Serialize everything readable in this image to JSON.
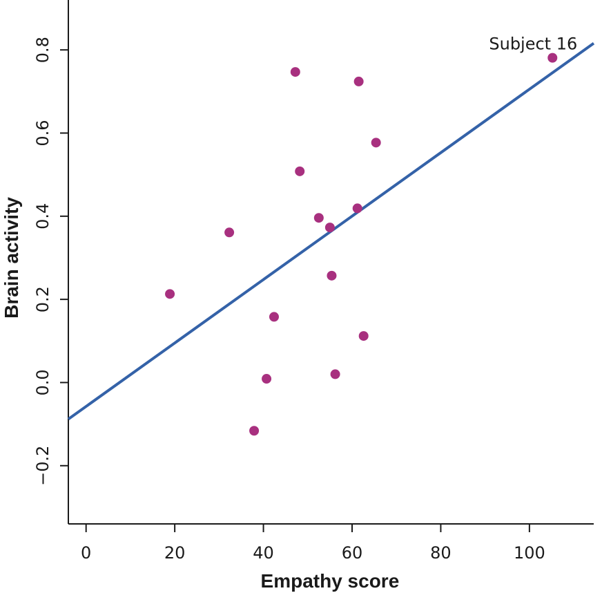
{
  "chart_data": {
    "type": "scatter",
    "title": "",
    "xlabel": "Empathy score",
    "ylabel": "Brain activity",
    "xlim": [
      -4,
      114.5
    ],
    "ylim": [
      -0.34,
      0.92
    ],
    "x_ticks": [
      0,
      20,
      40,
      60,
      80,
      100
    ],
    "x_tick_labels": [
      "0",
      "20",
      "40",
      "60",
      "80",
      "100"
    ],
    "y_ticks": [
      -0.2,
      0.0,
      0.2,
      0.4,
      0.6,
      0.8
    ],
    "y_tick_labels": [
      "−0.2",
      "0.0",
      "0.2",
      "0.4",
      "0.6",
      "0.8"
    ],
    "grid": false,
    "series": [
      {
        "type": "scatter",
        "color": "#a8307f",
        "points": [
          {
            "x": 18.9,
            "y": 0.213
          },
          {
            "x": 32.3,
            "y": 0.361
          },
          {
            "x": 37.9,
            "y": -0.116
          },
          {
            "x": 40.7,
            "y": 0.009
          },
          {
            "x": 42.4,
            "y": 0.158
          },
          {
            "x": 47.2,
            "y": 0.747
          },
          {
            "x": 48.2,
            "y": 0.508
          },
          {
            "x": 52.5,
            "y": 0.396
          },
          {
            "x": 55.0,
            "y": 0.373
          },
          {
            "x": 55.4,
            "y": 0.257
          },
          {
            "x": 56.2,
            "y": 0.02
          },
          {
            "x": 61.2,
            "y": 0.419
          },
          {
            "x": 61.5,
            "y": 0.724
          },
          {
            "x": 62.6,
            "y": 0.112
          },
          {
            "x": 65.4,
            "y": 0.577
          },
          {
            "x": 105.2,
            "y": 0.781
          }
        ]
      },
      {
        "type": "line",
        "color": "#3462a8",
        "points": [
          {
            "x": -4,
            "y": -0.088
          },
          {
            "x": 114.5,
            "y": 0.816
          }
        ]
      }
    ],
    "annotations": [
      {
        "text": "Subject 16",
        "x": 105.2,
        "y": 0.781
      }
    ]
  }
}
